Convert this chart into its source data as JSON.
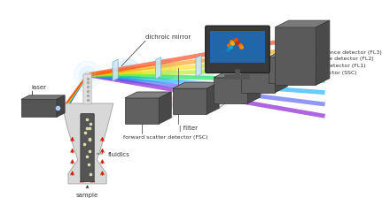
{
  "bg_color": "#ffffff",
  "labels": {
    "laser": "laser",
    "dichroic_mirror": "dichroic mirror",
    "filter": "| filter",
    "fsc": "forward scatter detector (FSC)",
    "ssc": "side scatter detector (SSC)",
    "fl1": "fluorescence detector (FL1)",
    "fl2": "fluorescence detector (FL2)",
    "fl3": "fluorescence detector (FL3)",
    "fluidics": "fluidics",
    "sample": "sample"
  },
  "label_color": "#333333",
  "detector_color": "#555555",
  "detector_edge": "#333333",
  "red_arrow_color": "#cc2200",
  "beam_rainbow": [
    "#7700cc",
    "#4455ff",
    "#00aaff",
    "#00ee88",
    "#aaee00",
    "#ffdd00",
    "#ff8800",
    "#ff3300"
  ],
  "beam_side_colors": [
    "#ffaaaa",
    "#ffdd99",
    "#aaffaa",
    "#aaaaff",
    "#ffaaff"
  ],
  "monitor_bg": "#1155aa",
  "monitor_frame": "#444444"
}
